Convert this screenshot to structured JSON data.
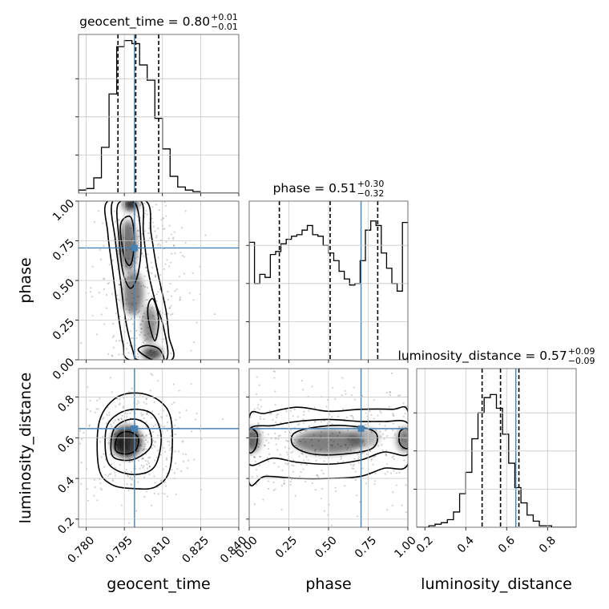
{
  "chart_data": {
    "type": "corner",
    "parameters": [
      "geocent_time",
      "phase",
      "luminosity_distance"
    ],
    "axis_labels": [
      "geocent_time",
      "phase",
      "luminosity_distance"
    ],
    "ranges": [
      [
        0.777,
        0.84
      ],
      [
        0.0,
        1.0
      ],
      [
        0.16,
        0.94
      ]
    ],
    "ticks": [
      {
        "values": [
          0.78,
          0.795,
          0.81,
          0.825,
          0.84
        ],
        "labels": [
          "0.780",
          "0.795",
          "0.810",
          "0.825",
          "0.840"
        ]
      },
      {
        "values": [
          0.0,
          0.25,
          0.5,
          0.75,
          1.0
        ],
        "labels": [
          "0.00",
          "0.25",
          "0.50",
          "0.75",
          "1.00"
        ]
      },
      {
        "values": [
          0.2,
          0.4,
          0.6,
          0.8
        ],
        "labels": [
          "0.2",
          "0.4",
          "0.6",
          "0.8"
        ]
      }
    ],
    "truths": [
      0.799,
      0.705,
      0.645
    ],
    "truth_color": "#4682b4",
    "titles": [
      {
        "param": "geocent_time",
        "median": "0.80",
        "plus": "+0.01",
        "minus": "−0.01"
      },
      {
        "param": "phase",
        "median": "0.51",
        "plus": "+0.30",
        "minus": "−0.32"
      },
      {
        "param": "luminosity_distance",
        "median": "0.57",
        "plus": "+0.09",
        "minus": "−0.09"
      }
    ],
    "quantiles": [
      [
        0.7925,
        0.7995,
        0.8085
      ],
      [
        0.19,
        0.51,
        0.81
      ],
      [
        0.48,
        0.57,
        0.66
      ]
    ],
    "histograms": [
      {
        "edges_start": 0.777,
        "bin_width": 0.003,
        "counts": [
          2,
          3,
          10,
          30,
          65,
          96,
          100,
          98,
          84,
          74,
          49,
          29,
          11,
          4,
          2,
          1,
          0,
          0,
          0,
          0,
          0
        ]
      },
      {
        "edges_start": 0.0,
        "bin_width": 0.0333,
        "counts": [
          77,
          50,
          56,
          54,
          69,
          71,
          76,
          79,
          81,
          82,
          85,
          88,
          82,
          81,
          75,
          70,
          65,
          58,
          53,
          49,
          50,
          65,
          85,
          91,
          88,
          70,
          60,
          50,
          45,
          90
        ]
      },
      {
        "edges_start": 0.16,
        "bin_width": 0.03,
        "counts": [
          0,
          0,
          1,
          2,
          3,
          5,
          10,
          22,
          36,
          58,
          75,
          85,
          87,
          78,
          61,
          42,
          26,
          16,
          8,
          4,
          1,
          1,
          0,
          0,
          0,
          0
        ]
      }
    ],
    "hist_ymax": [
      100,
      100,
      100
    ],
    "contours": [
      {
        "x": "geocent_time",
        "y": "phase",
        "levels": [
          [
            [
              0.7885,
              1.0
            ],
            [
              0.7885,
              0.8
            ],
            [
              0.7905,
              0.55
            ],
            [
              0.7925,
              0.3
            ],
            [
              0.7945,
              0.1
            ],
            [
              0.797,
              0.0
            ],
            [
              0.8135,
              0.0
            ],
            [
              0.8125,
              0.15
            ],
            [
              0.8115,
              0.3
            ],
            [
              0.8095,
              0.45
            ],
            [
              0.8075,
              0.6
            ],
            [
              0.8055,
              0.8
            ],
            [
              0.8035,
              1.0
            ]
          ],
          [
            [
              0.7905,
              1.0
            ],
            [
              0.7915,
              0.75
            ],
            [
              0.7935,
              0.5
            ],
            [
              0.7955,
              0.25
            ],
            [
              0.7985,
              0.05
            ],
            [
              0.8005,
              0.0
            ],
            [
              0.8115,
              0.0
            ],
            [
              0.8105,
              0.2
            ],
            [
              0.8075,
              0.35
            ],
            [
              0.8045,
              0.55
            ],
            [
              0.8025,
              0.8
            ],
            [
              0.8015,
              1.0
            ]
          ],
          [
            [
              0.7925,
              0.98
            ],
            [
              0.793,
              0.75
            ],
            [
              0.7945,
              0.55
            ],
            [
              0.7975,
              0.45
            ],
            [
              0.8005,
              0.55
            ],
            [
              0.8015,
              0.75
            ],
            [
              0.7995,
              0.98
            ]
          ],
          [
            [
              0.7935,
              0.85
            ],
            [
              0.795,
              0.65
            ],
            [
              0.7975,
              0.6
            ],
            [
              0.799,
              0.75
            ],
            [
              0.7975,
              0.9
            ]
          ],
          [
            [
              0.8045,
              0.25
            ],
            [
              0.807,
              0.12
            ],
            [
              0.8085,
              0.25
            ],
            [
              0.8065,
              0.38
            ],
            [
              0.8045,
              0.35
            ]
          ],
          [
            [
              0.8005,
              0.06
            ],
            [
              0.806,
              0.0
            ],
            [
              0.8105,
              0.0
            ],
            [
              0.8085,
              0.07
            ],
            [
              0.8035,
              0.09
            ]
          ]
        ]
      },
      {
        "x": "geocent_time",
        "y": "luminosity_distance",
        "levels": [
          [
            [
              0.785,
              0.45
            ],
            [
              0.785,
              0.67
            ],
            [
              0.791,
              0.79
            ],
            [
              0.8,
              0.82
            ],
            [
              0.809,
              0.78
            ],
            [
              0.8135,
              0.68
            ],
            [
              0.813,
              0.45
            ],
            [
              0.8075,
              0.36
            ],
            [
              0.799,
              0.35
            ],
            [
              0.79,
              0.37
            ]
          ],
          [
            [
              0.788,
              0.5
            ],
            [
              0.788,
              0.65
            ],
            [
              0.793,
              0.72
            ],
            [
              0.8,
              0.74
            ],
            [
              0.8065,
              0.71
            ],
            [
              0.8095,
              0.6
            ],
            [
              0.807,
              0.46
            ],
            [
              0.8,
              0.42
            ],
            [
              0.792,
              0.44
            ]
          ],
          [
            [
              0.79,
              0.52
            ],
            [
              0.7905,
              0.63
            ],
            [
              0.7945,
              0.68
            ],
            [
              0.8,
              0.69
            ],
            [
              0.8045,
              0.65
            ],
            [
              0.8055,
              0.56
            ],
            [
              0.8,
              0.5
            ],
            [
              0.794,
              0.49
            ]
          ],
          [
            [
              0.7915,
              0.54
            ],
            [
              0.7925,
              0.61
            ],
            [
              0.7965,
              0.63
            ],
            [
              0.8005,
              0.6
            ],
            [
              0.7995,
              0.54
            ],
            [
              0.7955,
              0.52
            ]
          ]
        ]
      },
      {
        "x": "phase",
        "y": "luminosity_distance",
        "levels": [
          [
            [
              0.0,
              0.38
            ],
            [
              0.1,
              0.41
            ],
            [
              0.3,
              0.4
            ],
            [
              0.5,
              0.4
            ],
            [
              0.7,
              0.41
            ],
            [
              0.85,
              0.45
            ],
            [
              1.0,
              0.47
            ],
            [
              1.0,
              0.73
            ],
            [
              0.9,
              0.74
            ],
            [
              0.7,
              0.74
            ],
            [
              0.5,
              0.73
            ],
            [
              0.3,
              0.75
            ],
            [
              0.1,
              0.72
            ],
            [
              0.0,
              0.7
            ]
          ],
          [
            [
              0.0,
              0.47
            ],
            [
              0.15,
              0.5
            ],
            [
              0.3,
              0.48
            ],
            [
              0.5,
              0.47
            ],
            [
              0.7,
              0.49
            ],
            [
              0.85,
              0.53
            ],
            [
              1.0,
              0.52
            ],
            [
              1.0,
              0.67
            ],
            [
              0.85,
              0.68
            ],
            [
              0.7,
              0.68
            ],
            [
              0.5,
              0.69
            ],
            [
              0.3,
              0.68
            ],
            [
              0.15,
              0.66
            ],
            [
              0.0,
              0.64
            ]
          ],
          [
            [
              0.28,
              0.56
            ],
            [
              0.4,
              0.52
            ],
            [
              0.6,
              0.52
            ],
            [
              0.78,
              0.55
            ],
            [
              0.79,
              0.63
            ],
            [
              0.6,
              0.66
            ],
            [
              0.4,
              0.65
            ],
            [
              0.28,
              0.62
            ]
          ],
          [
            [
              0.0,
              0.53
            ],
            [
              0.04,
              0.55
            ],
            [
              0.05,
              0.62
            ],
            [
              0.0,
              0.64
            ]
          ],
          [
            [
              1.0,
              0.55
            ],
            [
              0.95,
              0.57
            ],
            [
              0.95,
              0.63
            ],
            [
              1.0,
              0.64
            ]
          ]
        ]
      }
    ],
    "density_blobs": [
      {
        "x": "geocent_time",
        "y": "phase",
        "blobs": [
          [
            0.7975,
            0.98,
            0.003,
            0.04,
            0.85
          ],
          [
            0.7965,
            0.72,
            0.0035,
            0.16,
            0.55
          ],
          [
            0.7985,
            0.42,
            0.004,
            0.14,
            0.5
          ],
          [
            0.805,
            0.22,
            0.003,
            0.12,
            0.45
          ],
          [
            0.806,
            0.04,
            0.004,
            0.04,
            0.7
          ]
        ],
        "scatter": {
          "cx": 0.801,
          "sx": 0.009,
          "cy": 0.5,
          "sy": 0.45,
          "n": 380
        }
      },
      {
        "x": "geocent_time",
        "y": "luminosity_distance",
        "blobs": [
          [
            0.796,
            0.58,
            0.006,
            0.08,
            0.75
          ],
          [
            0.794,
            0.57,
            0.003,
            0.04,
            0.5
          ]
        ],
        "scatter": {
          "cx": 0.799,
          "sx": 0.011,
          "cy": 0.58,
          "sy": 0.14,
          "n": 380
        }
      },
      {
        "x": "phase",
        "y": "luminosity_distance",
        "blobs": [
          [
            0.5,
            0.58,
            0.22,
            0.06,
            0.5
          ],
          [
            0.02,
            0.59,
            0.05,
            0.06,
            0.6
          ],
          [
            0.98,
            0.59,
            0.05,
            0.06,
            0.5
          ],
          [
            0.72,
            0.6,
            0.1,
            0.05,
            0.3
          ]
        ],
        "scatter": {
          "cx": 0.5,
          "sx": 0.5,
          "cy": 0.58,
          "sy": 0.14,
          "n": 420
        }
      }
    ],
    "grid": true
  }
}
